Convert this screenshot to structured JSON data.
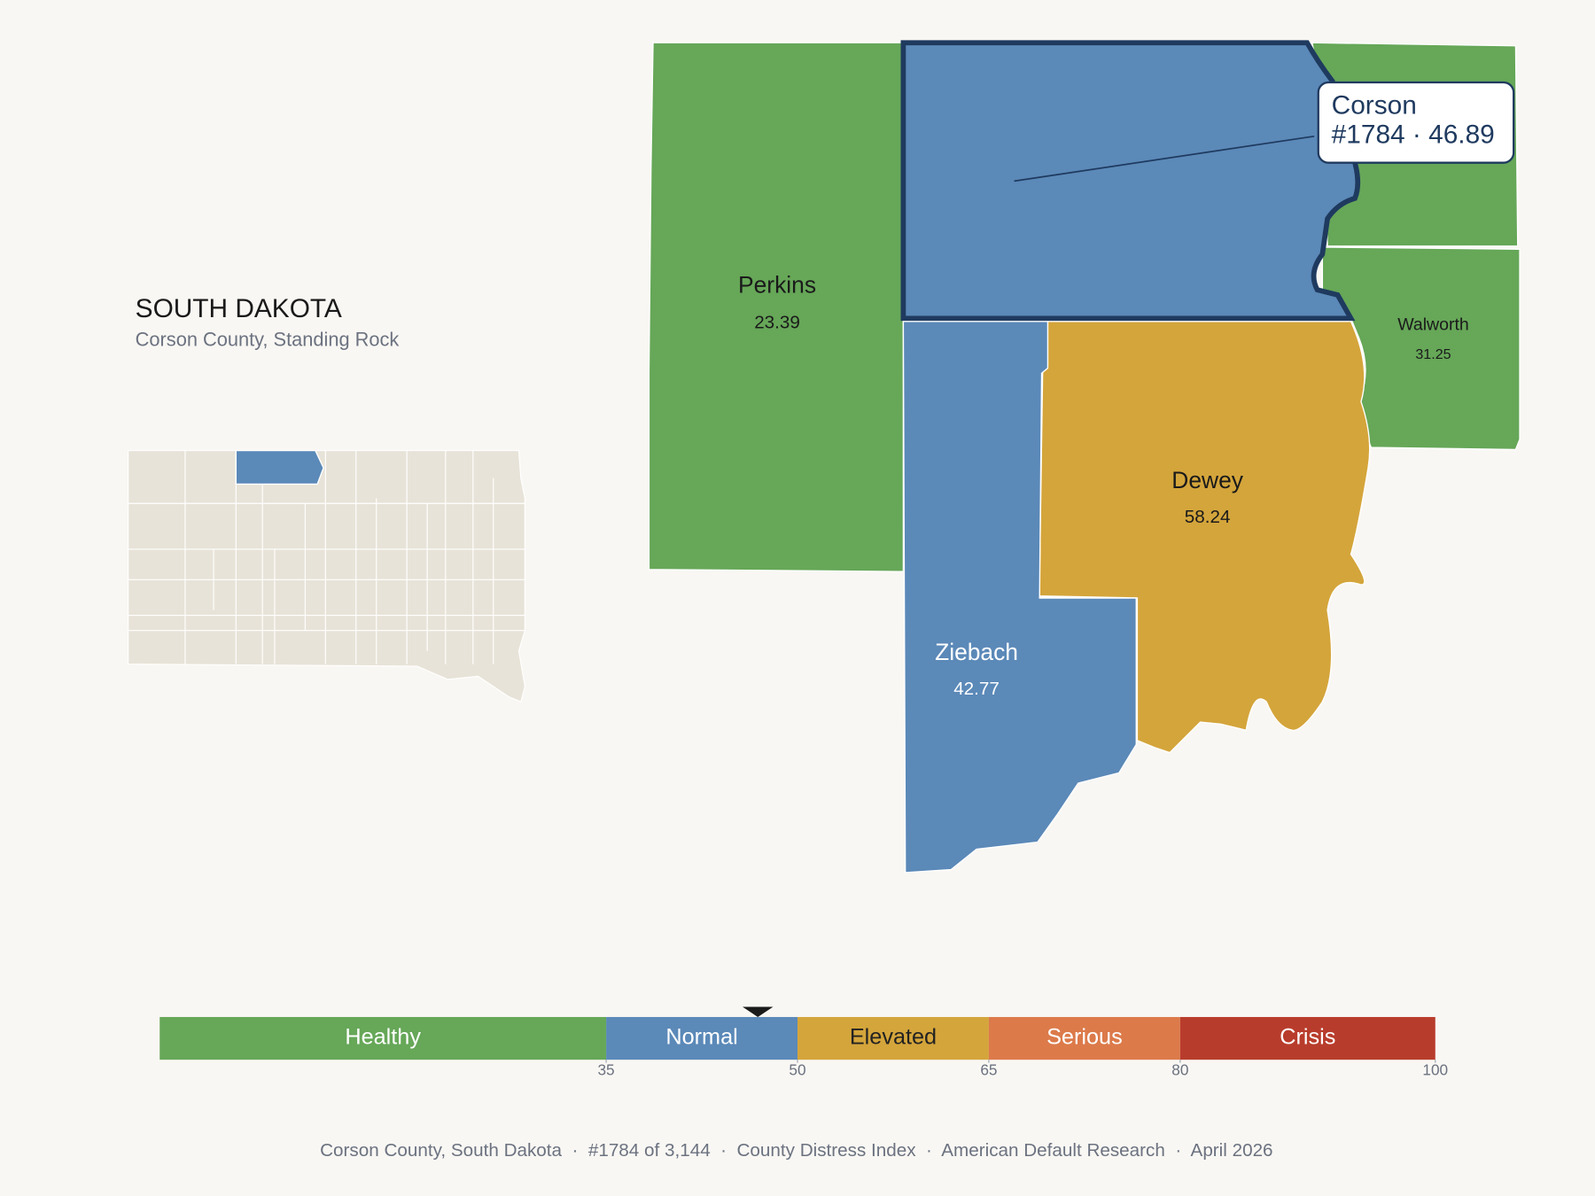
{
  "header": {
    "title": "SOUTH DAKOTA",
    "subtitle": "Corson County, Standing Rock"
  },
  "counties": [
    {
      "name": "Perkins",
      "value": 23.39
    },
    {
      "name": "Walworth",
      "value": 31.25
    },
    {
      "name": "Dewey",
      "value": 58.24
    },
    {
      "name": "Ziebach",
      "value": 42.77
    }
  ],
  "callout": {
    "name": "Corson",
    "label": "#1784 · 46.89",
    "value": 46.89
  },
  "legend": {
    "range": [
      0,
      100
    ],
    "ticks": [
      35,
      50,
      65,
      80,
      100
    ],
    "bins": [
      {
        "label": "Healthy",
        "color": "#66a758",
        "text_color": "#ffffff"
      },
      {
        "label": "Normal",
        "color": "#5b89b8",
        "text_color": "#ffffff"
      },
      {
        "label": "Elevated",
        "color": "#d4a53b",
        "text_color": "#222222"
      },
      {
        "label": "Serious",
        "color": "#dc7a4a",
        "text_color": "#ffffff"
      },
      {
        "label": "Crisis",
        "color": "#b83c2c",
        "text_color": "#ffffff"
      }
    ]
  },
  "footer": "Corson County, South Dakota  ·  #1784 of 3,144  ·  County Distress Index  ·  American Default Research  ·  April 2026"
}
